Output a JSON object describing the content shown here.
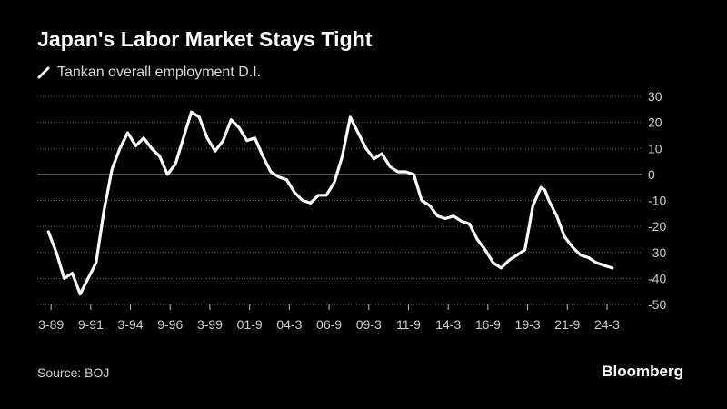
{
  "header": {
    "title": "Japan's Labor Market Stays Tight"
  },
  "footer": {
    "source": "Source: BOJ",
    "brand": "Bloomberg"
  },
  "colors": {
    "background": "#000000",
    "line": "#ffffff",
    "grid": "#5a5a5a",
    "zero_line": "#8c8c8c",
    "tick_text": "#cfcfcf"
  },
  "chart_data": {
    "type": "line",
    "title": "Japan's Labor Market Stays Tight",
    "xlabel": "",
    "ylabel": "",
    "ylim": [
      -50,
      30
    ],
    "yticks": [
      30,
      20,
      10,
      0,
      -10,
      -20,
      -30,
      -40,
      -50
    ],
    "y_axis_position": "right",
    "grid": true,
    "legend": "top-left",
    "x_tick_labels": [
      "3-89",
      "9-91",
      "3-94",
      "9-96",
      "3-99",
      "01-9",
      "04-3",
      "06-9",
      "09-3",
      "11-9",
      "14-3",
      "16-9",
      "19-3",
      "21-9",
      "24-3"
    ],
    "series": [
      {
        "name": "Tankan overall employment D.I.",
        "x": [
          1989.0,
          1989.5,
          1990.0,
          1990.5,
          1991.0,
          1991.5,
          1992.0,
          1992.5,
          1993.0,
          1993.5,
          1994.0,
          1994.5,
          1995.0,
          1995.5,
          1996.0,
          1996.5,
          1997.0,
          1997.5,
          1998.0,
          1998.5,
          1999.0,
          1999.5,
          2000.0,
          2000.5,
          2001.0,
          2001.5,
          2002.0,
          2002.5,
          2003.0,
          2003.5,
          2004.0,
          2004.5,
          2005.0,
          2005.5,
          2006.0,
          2006.5,
          2007.0,
          2007.5,
          2008.0,
          2008.5,
          2009.0,
          2009.5,
          2010.0,
          2010.5,
          2011.0,
          2011.5,
          2012.0,
          2012.5,
          2013.0,
          2013.5,
          2014.0,
          2014.5,
          2015.0,
          2015.5,
          2016.0,
          2016.5,
          2017.0,
          2017.5,
          2018.0,
          2018.5,
          2019.0,
          2019.5,
          2020.0,
          2020.25,
          2020.5,
          2021.0,
          2021.5,
          2022.0,
          2022.5,
          2023.0,
          2023.5,
          2024.0,
          2024.5
        ],
        "values": [
          -22,
          -30,
          -40,
          -38,
          -46,
          -40,
          -34,
          -14,
          2,
          10,
          16,
          11,
          14,
          10,
          7,
          0,
          4,
          14,
          24,
          22,
          14,
          9,
          13,
          21,
          18,
          13,
          14,
          7,
          1,
          -1,
          -2,
          -7,
          -10,
          -11,
          -8,
          -8,
          -3,
          7,
          22,
          16,
          10,
          6,
          8,
          3,
          1,
          1,
          0,
          -10,
          -12,
          -16,
          -17,
          -16,
          -18,
          -19,
          -25,
          -29,
          -34,
          -36,
          -33,
          -31,
          -29,
          -12,
          -5,
          -6,
          -10,
          -16,
          -24,
          -28,
          -31,
          -32,
          -34,
          -35,
          -36
        ]
      }
    ]
  }
}
